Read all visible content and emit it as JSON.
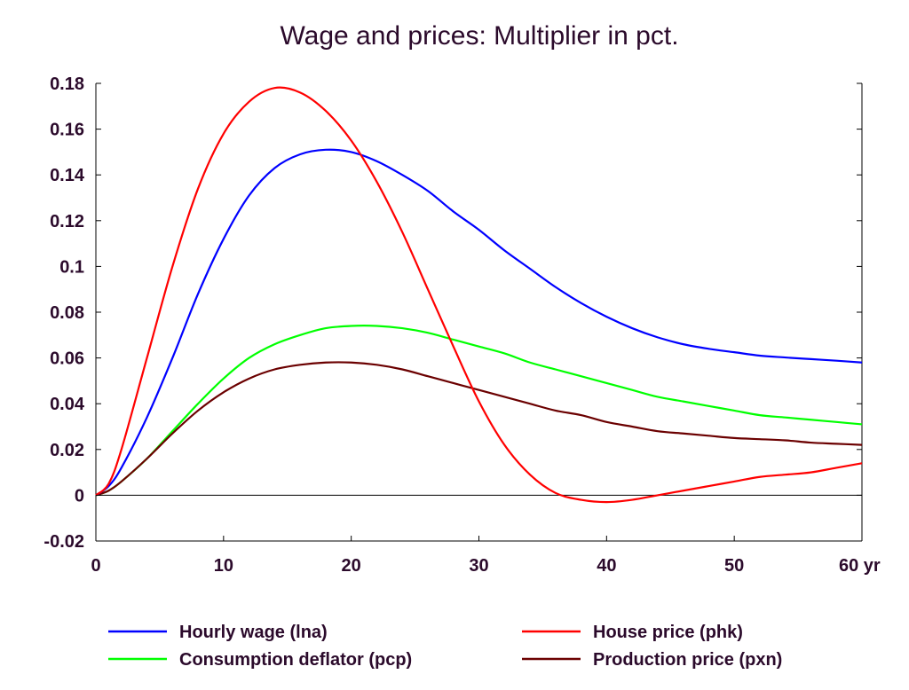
{
  "chart_data": {
    "type": "line",
    "title": "Wage and prices: Multiplier in pct.",
    "xlim": [
      0,
      60
    ],
    "ylim": [
      -0.02,
      0.18
    ],
    "x_ticks": [
      0,
      10,
      20,
      30,
      40,
      50,
      60
    ],
    "x_tick_labels": [
      "0",
      "10",
      "20",
      "30",
      "40",
      "50",
      "60 yr"
    ],
    "y_ticks": [
      -0.02,
      0,
      0.02,
      0.04,
      0.06,
      0.08,
      0.1,
      0.12,
      0.14,
      0.16,
      0.18
    ],
    "y_tick_labels": [
      "-0.02",
      "0",
      "0.02",
      "0.04",
      "0.06",
      "0.08",
      "0.1",
      "0.12",
      "0.14",
      "0.16",
      "0.18"
    ],
    "grid": false,
    "zero_line": true,
    "legend_position": "bottom",
    "x": [
      0,
      1,
      2,
      4,
      6,
      8,
      10,
      12,
      14,
      16,
      18,
      20,
      22,
      24,
      26,
      28,
      30,
      32,
      34,
      36,
      38,
      40,
      42,
      44,
      46,
      48,
      50,
      52,
      54,
      56,
      58,
      60
    ],
    "series": [
      {
        "name": "Hourly wage (lna)",
        "color": "#0000ff",
        "values": [
          0,
          0.004,
          0.012,
          0.034,
          0.06,
          0.088,
          0.112,
          0.131,
          0.143,
          0.149,
          0.151,
          0.15,
          0.146,
          0.14,
          0.133,
          0.124,
          0.116,
          0.107,
          0.099,
          0.091,
          0.084,
          0.078,
          0.073,
          0.069,
          0.066,
          0.064,
          0.0625,
          0.061,
          0.0602,
          0.0595,
          0.0588,
          0.058
        ]
      },
      {
        "name": "Consumption deflator (pcp)",
        "color": "#00ff00",
        "values": [
          0,
          0.002,
          0.006,
          0.016,
          0.028,
          0.04,
          0.051,
          0.06,
          0.066,
          0.07,
          0.073,
          0.074,
          0.074,
          0.073,
          0.071,
          0.068,
          0.065,
          0.062,
          0.058,
          0.055,
          0.052,
          0.049,
          0.046,
          0.043,
          0.041,
          0.039,
          0.037,
          0.035,
          0.034,
          0.033,
          0.032,
          0.031
        ]
      },
      {
        "name": "House price (phk)",
        "color": "#ff0000",
        "values": [
          0,
          0.005,
          0.02,
          0.06,
          0.1,
          0.134,
          0.158,
          0.172,
          0.178,
          0.176,
          0.168,
          0.155,
          0.137,
          0.115,
          0.09,
          0.065,
          0.041,
          0.022,
          0.009,
          0.001,
          -0.002,
          -0.003,
          -0.002,
          0.0,
          0.002,
          0.004,
          0.006,
          0.008,
          0.009,
          0.01,
          0.012,
          0.014
        ]
      },
      {
        "name": "Production price (pxn)",
        "color": "#6b0000",
        "values": [
          0,
          0.002,
          0.006,
          0.016,
          0.027,
          0.037,
          0.045,
          0.051,
          0.055,
          0.057,
          0.058,
          0.058,
          0.057,
          0.055,
          0.052,
          0.049,
          0.046,
          0.043,
          0.04,
          0.037,
          0.035,
          0.032,
          0.03,
          0.028,
          0.027,
          0.026,
          0.025,
          0.0245,
          0.024,
          0.023,
          0.0225,
          0.022
        ]
      }
    ]
  }
}
